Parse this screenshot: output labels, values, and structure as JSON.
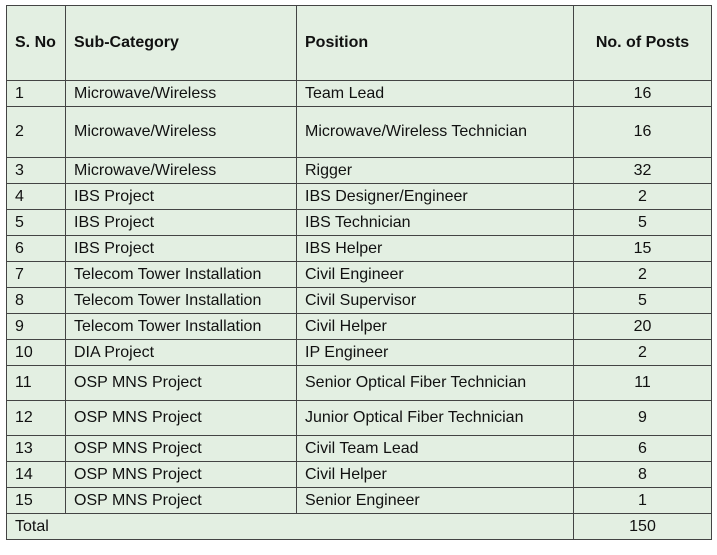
{
  "table": {
    "headers": {
      "sno": "S. No",
      "subcategory": "Sub-Category",
      "position": "Position",
      "posts": "No. of Posts"
    },
    "rows": [
      {
        "sno": "1",
        "subcategory": "Microwave/Wireless",
        "position": "Team Lead",
        "posts": "16"
      },
      {
        "sno": "2",
        "subcategory": "Microwave/Wireless",
        "position": "Microwave/Wireless Technician",
        "posts": "16"
      },
      {
        "sno": "3",
        "subcategory": "Microwave/Wireless",
        "position": "Rigger",
        "posts": "32"
      },
      {
        "sno": "4",
        "subcategory": "IBS Project",
        "position": "IBS Designer/Engineer",
        "posts": "2"
      },
      {
        "sno": "5",
        "subcategory": "IBS Project",
        "position": "IBS Technician",
        "posts": "5"
      },
      {
        "sno": "6",
        "subcategory": "IBS Project",
        "position": "IBS Helper",
        "posts": "15"
      },
      {
        "sno": "7",
        "subcategory": "Telecom Tower Installation",
        "position": "Civil Engineer",
        "posts": "2"
      },
      {
        "sno": "8",
        "subcategory": "Telecom Tower Installation",
        "position": "Civil Supervisor",
        "posts": "5"
      },
      {
        "sno": "9",
        "subcategory": "Telecom Tower Installation",
        "position": "Civil Helper",
        "posts": "20"
      },
      {
        "sno": "10",
        "subcategory": "DIA Project",
        "position": "IP Engineer",
        "posts": "2"
      },
      {
        "sno": "11",
        "subcategory": "OSP MNS Project",
        "position": "Senior Optical Fiber Technician",
        "posts": "11"
      },
      {
        "sno": "12",
        "subcategory": "OSP MNS Project",
        "position": "Junior Optical Fiber Technician",
        "posts": "9"
      },
      {
        "sno": "13",
        "subcategory": "OSP MNS Project",
        "position": "Civil Team Lead",
        "posts": "6"
      },
      {
        "sno": "14",
        "subcategory": "OSP MNS Project",
        "position": "Civil Helper",
        "posts": "8"
      },
      {
        "sno": "15",
        "subcategory": "OSP MNS Project",
        "position": "Senior Engineer",
        "posts": "1"
      }
    ],
    "total": {
      "label": "Total",
      "posts": "150"
    }
  },
  "colors": {
    "cell_background": "#e3efe2",
    "border": "#444444",
    "text": "#111111"
  }
}
